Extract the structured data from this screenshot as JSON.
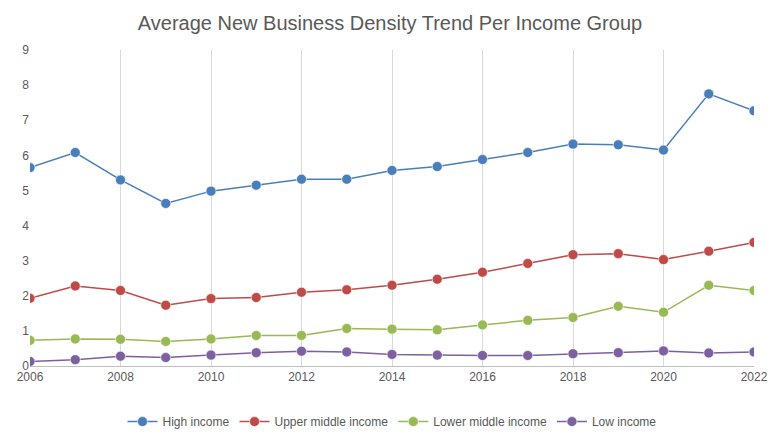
{
  "chart_data": {
    "type": "line",
    "title": "Average New Business Density Trend Per Income Group",
    "x": [
      2006,
      2007,
      2008,
      2009,
      2010,
      2011,
      2012,
      2013,
      2014,
      2015,
      2016,
      2017,
      2018,
      2019,
      2020,
      2021,
      2022
    ],
    "series": [
      {
        "name": "High income",
        "color": "#4a7ebb",
        "values": [
          5.65,
          6.08,
          5.3,
          4.63,
          4.98,
          5.15,
          5.32,
          5.32,
          5.57,
          5.68,
          5.88,
          6.08,
          6.32,
          6.3,
          6.15,
          7.75,
          7.27
        ]
      },
      {
        "name": "Upper middle income",
        "color": "#be4b48",
        "values": [
          1.93,
          2.28,
          2.15,
          1.73,
          1.92,
          1.95,
          2.1,
          2.17,
          2.3,
          2.47,
          2.67,
          2.92,
          3.17,
          3.2,
          3.03,
          3.27,
          3.52
        ]
      },
      {
        "name": "Lower middle income",
        "color": "#98b954",
        "values": [
          0.73,
          0.77,
          0.76,
          0.7,
          0.77,
          0.87,
          0.87,
          1.07,
          1.05,
          1.03,
          1.17,
          1.3,
          1.38,
          1.7,
          1.53,
          2.3,
          2.15
        ]
      },
      {
        "name": "Low income",
        "color": "#7d60a0",
        "values": [
          0.13,
          0.18,
          0.28,
          0.24,
          0.31,
          0.38,
          0.42,
          0.4,
          0.33,
          0.31,
          0.3,
          0.3,
          0.35,
          0.38,
          0.43,
          0.37,
          0.4
        ]
      }
    ],
    "xlim": [
      2006,
      2022
    ],
    "xticks": [
      2006,
      2008,
      2010,
      2012,
      2014,
      2016,
      2018,
      2020,
      2022
    ],
    "ylim": [
      0,
      9
    ],
    "yticks": [
      0,
      1,
      2,
      3,
      4,
      5,
      6,
      7,
      8,
      9
    ],
    "grid": true,
    "legend": "bottom",
    "marker": "circle",
    "line_style": "solid"
  }
}
